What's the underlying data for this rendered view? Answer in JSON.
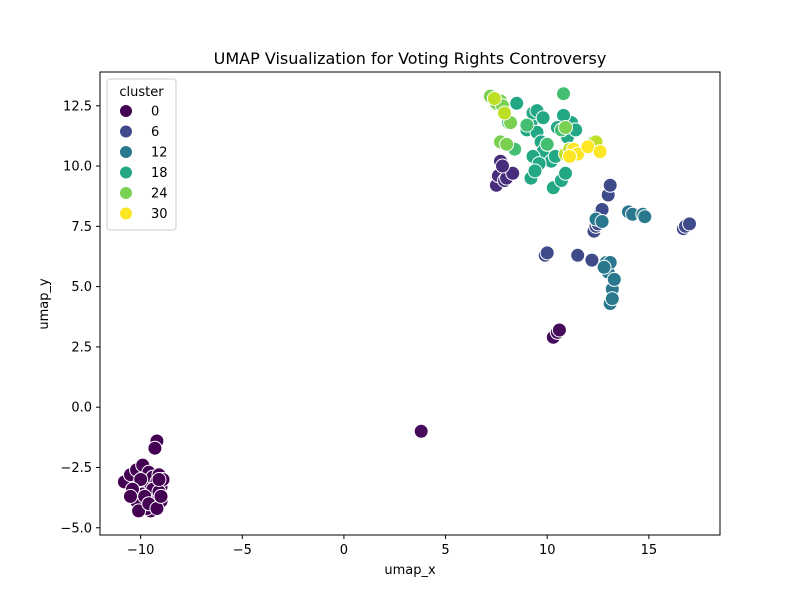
{
  "chart_data": {
    "type": "scatter",
    "title": "UMAP Visualization for Voting Rights Controversy",
    "xlabel": "umap_x",
    "ylabel": "umap_y",
    "xlim": [
      -12,
      18.5
    ],
    "ylim": [
      -5.3,
      13.9
    ],
    "xticks": [
      -10,
      -5,
      0,
      5,
      10,
      15
    ],
    "yticks": [
      -5.0,
      -2.5,
      0.0,
      2.5,
      5.0,
      7.5,
      10.0,
      12.5
    ],
    "xtick_labels": [
      "−10",
      "−5",
      "0",
      "5",
      "10",
      "15"
    ],
    "ytick_labels": [
      "−5.0",
      "−2.5",
      "0.0",
      "2.5",
      "5.0",
      "7.5",
      "10.0",
      "12.5"
    ],
    "grid": false,
    "legend": {
      "title": "cluster",
      "placement": "top-left",
      "entries": [
        {
          "label": "0",
          "color": "#440154"
        },
        {
          "label": "6",
          "color": "#3e4a89"
        },
        {
          "label": "12",
          "color": "#2a788e"
        },
        {
          "label": "18",
          "color": "#22a884"
        },
        {
          "label": "24",
          "color": "#7ad151"
        },
        {
          "label": "30",
          "color": "#fde725"
        }
      ]
    },
    "series": [
      {
        "color": "#440154",
        "points": [
          [
            -10.8,
            -3.1
          ],
          [
            -10.5,
            -2.8
          ],
          [
            -10.3,
            -3.5
          ],
          [
            -10.2,
            -2.6
          ],
          [
            -10.1,
            -3.9
          ],
          [
            -10.0,
            -3.3
          ],
          [
            -9.9,
            -2.4
          ],
          [
            -9.9,
            -3.6
          ],
          [
            -9.8,
            -4.1
          ],
          [
            -9.7,
            -3.0
          ],
          [
            -9.6,
            -2.7
          ],
          [
            -9.6,
            -3.8
          ],
          [
            -9.5,
            -3.2
          ],
          [
            -9.5,
            -4.3
          ],
          [
            -9.4,
            -2.9
          ],
          [
            -9.3,
            -3.5
          ],
          [
            -9.3,
            -4.0
          ],
          [
            -9.2,
            -3.1
          ],
          [
            -9.2,
            -3.7
          ],
          [
            -9.1,
            -2.8
          ],
          [
            -9.0,
            -3.3
          ],
          [
            -9.0,
            -3.9
          ],
          [
            -8.9,
            -3.0
          ],
          [
            -9.4,
            -3.4
          ],
          [
            -10.0,
            -3.0
          ],
          [
            -9.7,
            -4.2
          ],
          [
            -10.2,
            -3.9
          ],
          [
            -9.1,
            -3.5
          ],
          [
            -9.2,
            -1.4
          ],
          [
            -9.3,
            -1.7
          ],
          [
            -10.4,
            -3.4
          ],
          [
            -9.8,
            -3.7
          ],
          [
            -10.1,
            -4.3
          ],
          [
            -9.6,
            -4.0
          ],
          [
            -9.2,
            -4.2
          ],
          [
            -9.1,
            -3.0
          ],
          [
            -9.0,
            -3.7
          ],
          [
            -10.5,
            -3.7
          ]
        ]
      },
      {
        "color": "#450c5c",
        "points": [
          [
            3.8,
            -1.0
          ],
          [
            10.3,
            2.9
          ],
          [
            10.5,
            3.1
          ],
          [
            10.6,
            3.2
          ]
        ]
      },
      {
        "color": "#472d7b",
        "points": [
          [
            7.5,
            9.2
          ],
          [
            7.6,
            9.6
          ],
          [
            7.7,
            10.2
          ],
          [
            7.9,
            9.4
          ],
          [
            8.0,
            9.5
          ],
          [
            8.3,
            9.7
          ],
          [
            7.8,
            10.0
          ]
        ]
      },
      {
        "color": "#3e4a89",
        "points": [
          [
            9.9,
            6.3
          ],
          [
            10.0,
            6.4
          ],
          [
            11.5,
            6.3
          ],
          [
            12.2,
            6.1
          ],
          [
            12.3,
            7.3
          ],
          [
            12.4,
            7.5
          ],
          [
            12.5,
            7.6
          ],
          [
            12.6,
            8.0
          ],
          [
            12.7,
            8.2
          ],
          [
            13.0,
            8.8
          ],
          [
            13.1,
            9.2
          ],
          [
            16.7,
            7.4
          ],
          [
            16.8,
            7.5
          ],
          [
            17.0,
            7.6
          ]
        ]
      },
      {
        "color": "#2a788e",
        "points": [
          [
            12.4,
            7.8
          ],
          [
            12.7,
            7.7
          ],
          [
            12.9,
            6.0
          ],
          [
            13.0,
            5.6
          ],
          [
            13.1,
            6.0
          ],
          [
            13.2,
            4.9
          ],
          [
            13.3,
            5.3
          ],
          [
            13.1,
            4.3
          ],
          [
            13.2,
            4.5
          ],
          [
            14.0,
            8.1
          ],
          [
            14.2,
            8.0
          ],
          [
            14.7,
            8.0
          ],
          [
            14.8,
            7.9
          ],
          [
            12.8,
            5.8
          ]
        ]
      },
      {
        "color": "#22a884",
        "points": [
          [
            8.5,
            12.6
          ],
          [
            9.0,
            11.5
          ],
          [
            9.2,
            11.8
          ],
          [
            9.3,
            12.2
          ],
          [
            9.5,
            11.4
          ],
          [
            9.5,
            12.3
          ],
          [
            9.7,
            11.0
          ],
          [
            9.8,
            10.6
          ],
          [
            10.0,
            10.9
          ],
          [
            10.2,
            10.2
          ],
          [
            10.3,
            9.1
          ],
          [
            10.4,
            10.4
          ],
          [
            10.7,
            9.4
          ],
          [
            10.9,
            9.7
          ],
          [
            11.0,
            11.2
          ],
          [
            11.2,
            11.8
          ],
          [
            11.4,
            11.5
          ],
          [
            9.3,
            10.4
          ],
          [
            9.6,
            10.1
          ],
          [
            10.8,
            12.1
          ],
          [
            9.2,
            9.5
          ],
          [
            9.4,
            9.8
          ],
          [
            10.5,
            11.6
          ],
          [
            9.8,
            12.0
          ]
        ]
      },
      {
        "color": "#43bf71",
        "points": [
          [
            8.1,
            11.8
          ],
          [
            8.4,
            10.7
          ],
          [
            9.0,
            11.7
          ],
          [
            10.0,
            10.9
          ],
          [
            10.7,
            11.5
          ],
          [
            10.8,
            13.0
          ]
        ]
      },
      {
        "color": "#7ad151",
        "points": [
          [
            7.2,
            12.9
          ],
          [
            7.5,
            12.6
          ],
          [
            7.7,
            12.7
          ],
          [
            7.7,
            11.0
          ],
          [
            7.8,
            12.5
          ],
          [
            8.0,
            10.9
          ],
          [
            8.2,
            11.8
          ],
          [
            10.9,
            11.6
          ],
          [
            12.3,
            11.0
          ]
        ]
      },
      {
        "color": "#bddf26",
        "points": [
          [
            7.4,
            12.8
          ],
          [
            7.9,
            12.2
          ],
          [
            10.9,
            10.5
          ],
          [
            11.1,
            10.7
          ],
          [
            12.4,
            11.0
          ]
        ]
      },
      {
        "color": "#fde725",
        "points": [
          [
            11.3,
            10.7
          ],
          [
            11.5,
            10.5
          ],
          [
            12.0,
            10.8
          ],
          [
            12.6,
            10.6
          ],
          [
            11.1,
            10.4
          ]
        ]
      }
    ]
  }
}
